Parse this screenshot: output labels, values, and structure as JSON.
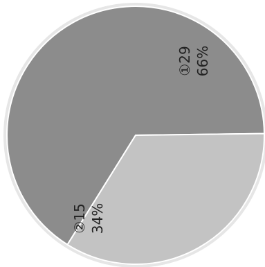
{
  "chart_data": {
    "type": "pie",
    "slices": [
      {
        "label": "①29",
        "value": 29,
        "percent_label": "66%",
        "color": "#8c8c8c"
      },
      {
        "label": "②15",
        "value": 15,
        "percent_label": "34%",
        "color": "#c3c3c3"
      }
    ],
    "border_color": "#e6e6e6",
    "divider_color": "#ffffff"
  }
}
